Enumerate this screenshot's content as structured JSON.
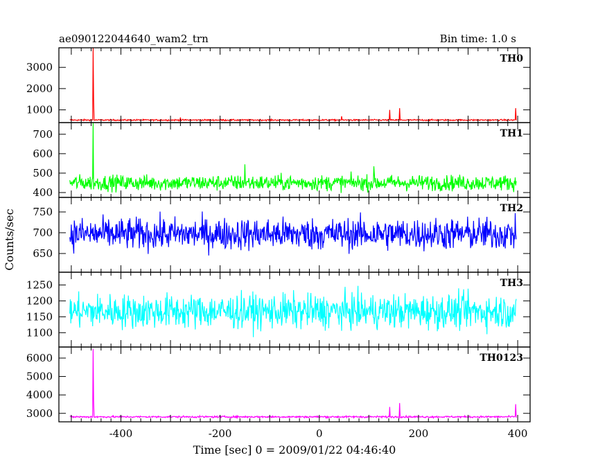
{
  "chart_data": {
    "type": "line",
    "title": "ae090122044640_wam2_trn",
    "bin_time_label": "Bin time: 1.0 s",
    "xlabel": "Time [sec] 0 = 2009/01/22 04:46:40",
    "ylabel": "Counts/sec",
    "xlim": [
      -525,
      425
    ],
    "x_ticks": [
      "-400",
      "-200",
      "0",
      "200",
      "400"
    ],
    "x_start": -503,
    "x_end": 397,
    "bin_seconds": 1.0,
    "grid": false,
    "panels": [
      {
        "name": "TH0",
        "color": "#ff0000",
        "ylim": [
          400,
          3920
        ],
        "yticks": [
          "1000",
          "2000",
          "3000"
        ],
        "baseline": 520,
        "noise": 22,
        "spikes": [
          {
            "x": -456,
            "y": 3920
          },
          {
            "x": -455,
            "y": 1500
          },
          {
            "x": -280,
            "y": 640
          },
          {
            "x": 45,
            "y": 700
          },
          {
            "x": 142,
            "y": 1000
          },
          {
            "x": 162,
            "y": 1080
          },
          {
            "x": 396,
            "y": 1080
          }
        ]
      },
      {
        "name": "TH1",
        "color": "#00ff00",
        "ylim": [
          375,
          760
        ],
        "yticks": [
          "400",
          "500",
          "600",
          "700"
        ],
        "baseline": 450,
        "noise": 28,
        "spikes": [
          {
            "x": -456,
            "y": 760
          },
          {
            "x": -150,
            "y": 545
          },
          {
            "x": 110,
            "y": 535
          }
        ]
      },
      {
        "name": "TH2",
        "color": "#0000ff",
        "ylim": [
          605,
          785
        ],
        "yticks": [
          "650",
          "700",
          "750"
        ],
        "baseline": 697,
        "noise": 27,
        "spikes": []
      },
      {
        "name": "TH3",
        "color": "#00ffff",
        "ylim": [
          1055,
          1290
        ],
        "yticks": [
          "1100",
          "1150",
          "1200",
          "1250"
        ],
        "baseline": 1167,
        "noise": 38,
        "spikes": []
      },
      {
        "name": "TH0123",
        "color": "#ff00ff",
        "ylim": [
          2540,
          6600
        ],
        "yticks": [
          "3000",
          "4000",
          "5000",
          "6000"
        ],
        "baseline": 2810,
        "noise": 35,
        "spikes": [
          {
            "x": -456,
            "y": 6500
          },
          {
            "x": -455,
            "y": 3700
          },
          {
            "x": 142,
            "y": 3350
          },
          {
            "x": 162,
            "y": 3560
          },
          {
            "x": 396,
            "y": 3500
          }
        ]
      }
    ]
  }
}
